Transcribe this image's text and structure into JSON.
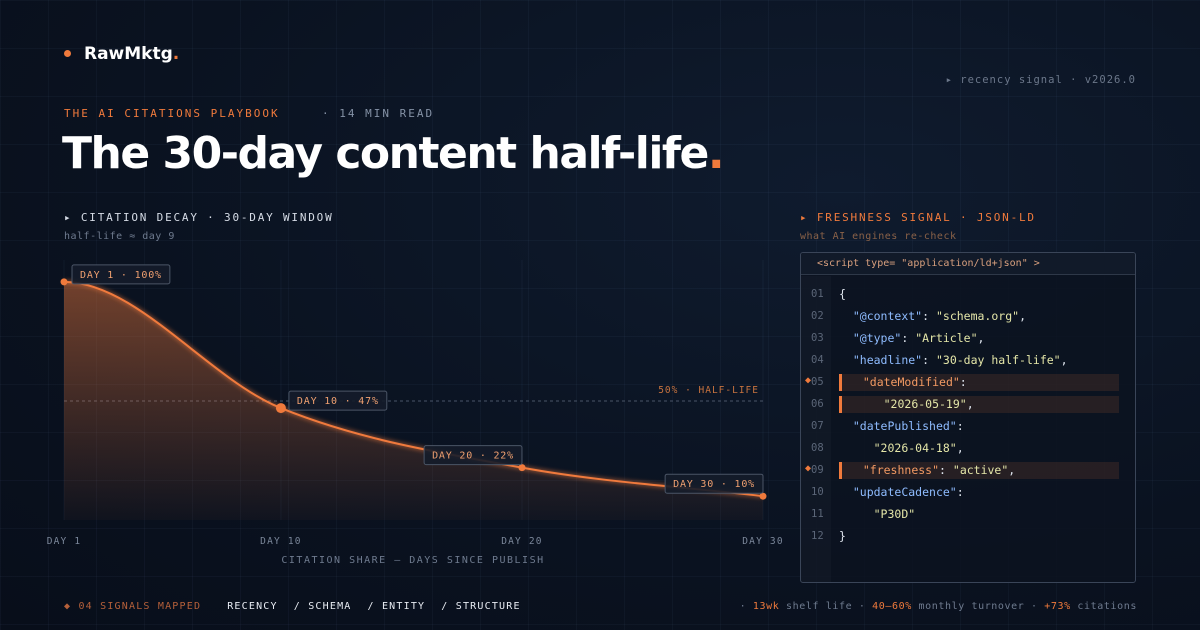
{
  "brand": "RawMktg.",
  "version_tag": "▸ recency signal · v2026.0",
  "kicker": "THE AI CITATIONS PLAYBOOK",
  "read_time": "· 14 MIN READ",
  "title": "The 30-day content half-life.",
  "chart_data": {
    "type": "line",
    "title": "▸ CITATION DECAY · 30-DAY WINDOW",
    "subtitle": "half-life ≈ day 9",
    "x_label": "CITATION SHARE — DAYS SINCE PUBLISH",
    "x": [
      1,
      10,
      20,
      30
    ],
    "values": [
      100,
      47,
      22,
      10
    ],
    "value_labels": [
      "DAY 1 · 100%",
      "DAY 10 · 47%",
      "DAY 20 · 22%",
      "DAY 30 · 10%"
    ],
    "color": "#f07a3c",
    "xlim": [
      1,
      30
    ],
    "xticks": [
      {
        "value": 1,
        "label": "DAY 1"
      },
      {
        "value": 10,
        "label": "DAY 10"
      },
      {
        "value": 20,
        "label": "DAY 20"
      },
      {
        "value": 30,
        "label": "DAY 30"
      }
    ],
    "ylim": [
      0,
      105
    ],
    "reference_line": {
      "value": 50,
      "label": "50% · HALF-LIFE"
    }
  },
  "code_panel": {
    "title": "▸ FRESHNESS SIGNAL · JSON-LD",
    "subtitle": "what AI engines re-check",
    "header": "<script type= \"application/ld+json\" >",
    "lines": [
      {
        "n": "01",
        "text": "{"
      },
      {
        "n": "02",
        "text": "  \"@context\": \"schema.org\","
      },
      {
        "n": "03",
        "text": "  \"@type\": \"Article\","
      },
      {
        "n": "04",
        "text": "  \"headline\": \"30-day half-life\","
      },
      {
        "n": "05",
        "text": "  \"dateModified\":",
        "highlight": true,
        "marker": "◆"
      },
      {
        "n": "06",
        "text": "     \"2026-05-19\",",
        "highlight": true
      },
      {
        "n": "07",
        "text": "  \"datePublished\":"
      },
      {
        "n": "08",
        "text": "     \"2026-04-18\","
      },
      {
        "n": "09",
        "text": "  \"freshness\": \"active\",",
        "highlight": true,
        "marker": "◆"
      },
      {
        "n": "10",
        "text": "  \"updateCadence\":"
      },
      {
        "n": "11",
        "text": "     \"P30D\""
      },
      {
        "n": "12",
        "text": "}"
      }
    ]
  },
  "footer": {
    "signals": "◆ 04 SIGNALS MAPPED",
    "tags": [
      "RECENCY",
      "/ SCHEMA",
      "/ ENTITY",
      "/ STRUCTURE"
    ],
    "stats": [
      {
        "stat": "13wk",
        "text": "shelf life"
      },
      {
        "stat": "40–60%",
        "text": "monthly turnover"
      },
      {
        "stat": "+73%",
        "text": "citations"
      }
    ]
  }
}
